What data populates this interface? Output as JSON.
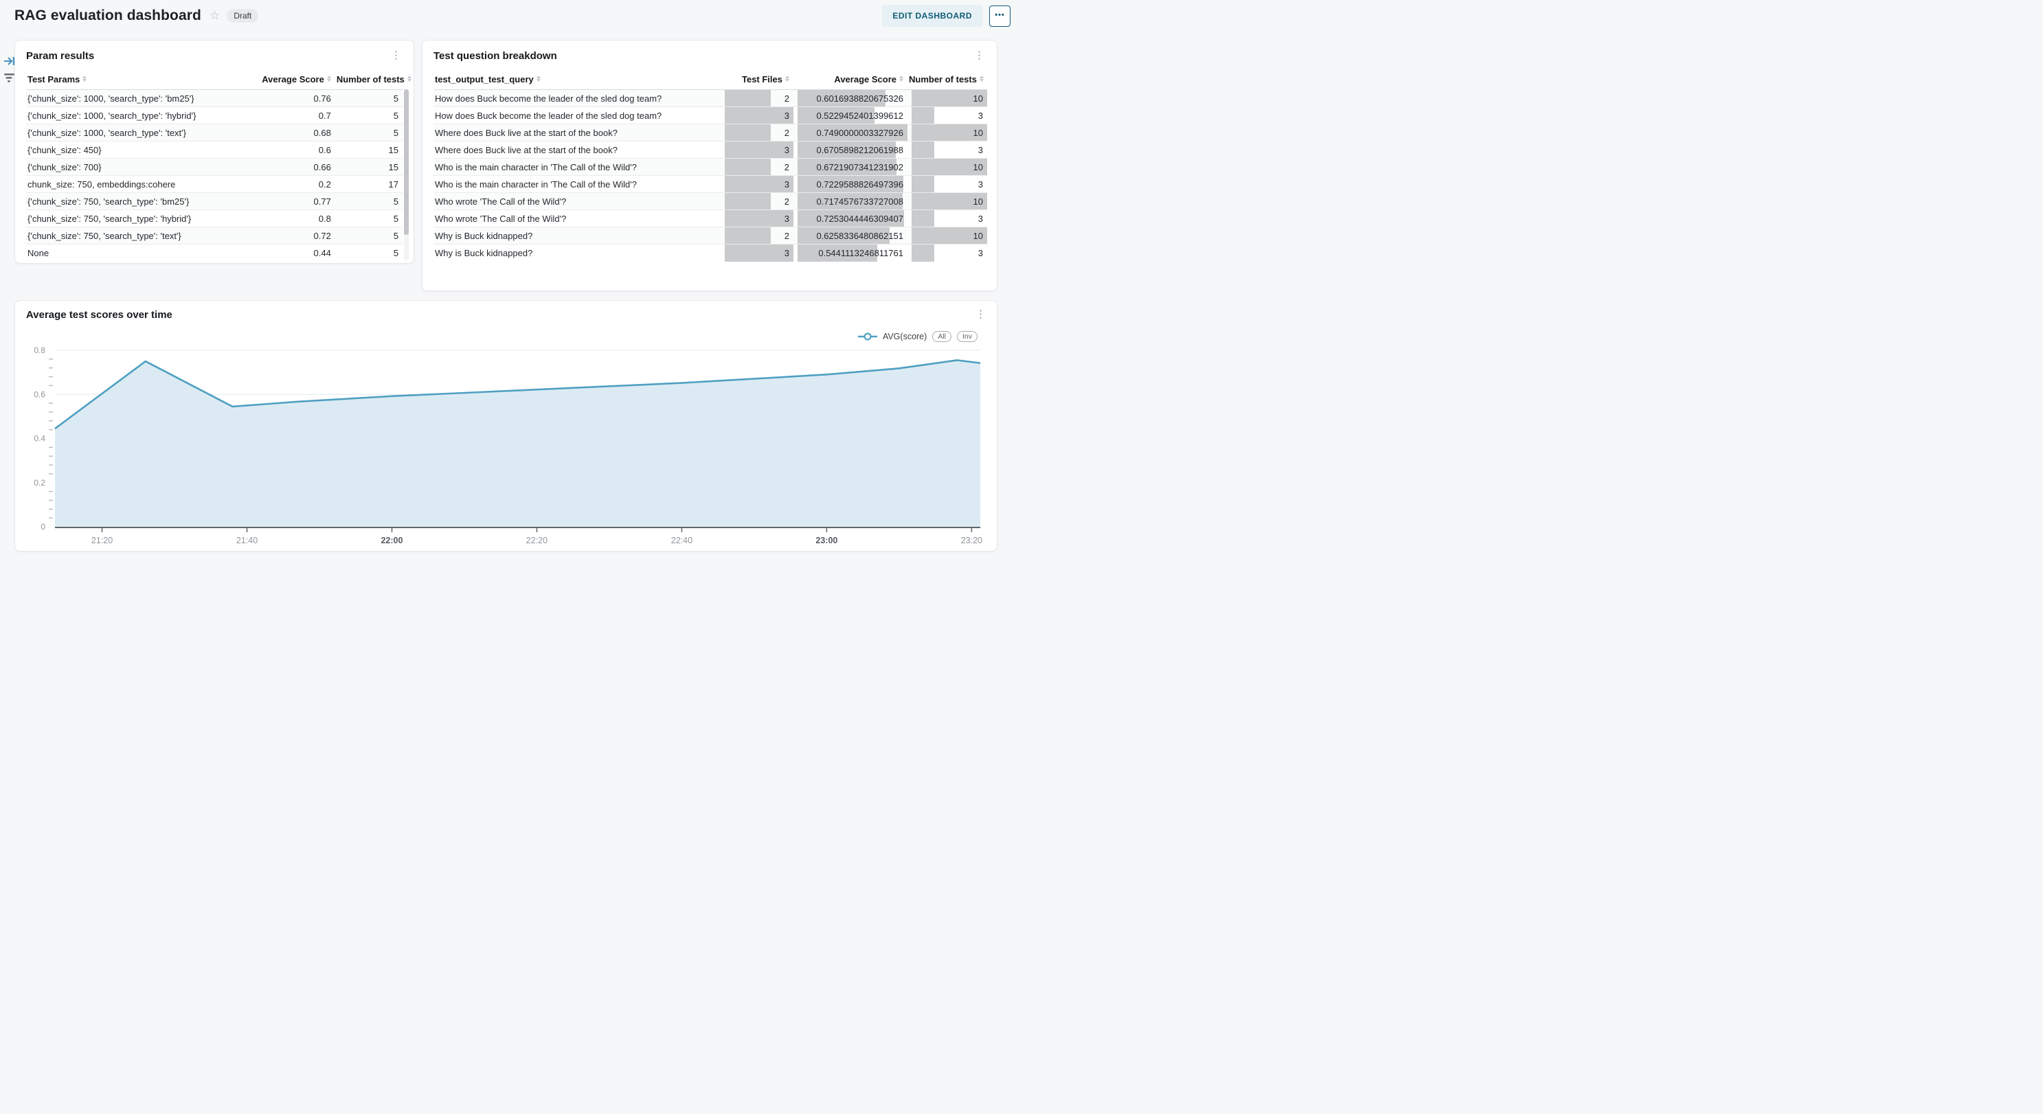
{
  "header": {
    "title": "RAG evaluation dashboard",
    "status_badge": "Draft",
    "edit_button_label": "EDIT DASHBOARD",
    "overflow_button_glyph": "•••",
    "accent_color": "#0e5a75"
  },
  "panels": {
    "param_results": {
      "title": "Param results",
      "columns": [
        "Test Params",
        "Average Score",
        "Number of tests"
      ],
      "rows": [
        [
          "{'chunk_size': 1000, 'search_type': 'bm25'}",
          "0.76",
          "5"
        ],
        [
          "{'chunk_size': 1000, 'search_type': 'hybrid'}",
          "0.7",
          "5"
        ],
        [
          "{'chunk_size': 1000, 'search_type': 'text'}",
          "0.68",
          "5"
        ],
        [
          "{'chunk_size': 450}",
          "0.6",
          "15"
        ],
        [
          "{'chunk_size': 700}",
          "0.66",
          "15"
        ],
        [
          "chunk_size: 750, embeddings:cohere",
          "0.2",
          "17"
        ],
        [
          "{'chunk_size': 750, 'search_type': 'bm25'}",
          "0.77",
          "5"
        ],
        [
          "{'chunk_size': 750, 'search_type': 'hybrid'}",
          "0.8",
          "5"
        ],
        [
          "{'chunk_size': 750, 'search_type': 'text'}",
          "0.72",
          "5"
        ],
        [
          "None",
          "0.44",
          "5"
        ]
      ]
    },
    "question_breakdown": {
      "title": "Test question breakdown",
      "columns": [
        "test_output_test_query",
        "Test Files",
        "Average Score",
        "Number of tests"
      ],
      "bar_color": "#c9cacc",
      "rows": [
        [
          "How does Buck become the leader of the sled dog team?",
          "2",
          "0.6016938820675326",
          "10"
        ],
        [
          "How does Buck become the leader of the sled dog team?",
          "3",
          "0.5229452401399612",
          "3"
        ],
        [
          "Where does Buck live at the start of the book?",
          "2",
          "0.7490000003327926",
          "10"
        ],
        [
          "Where does Buck live at the start of the book?",
          "3",
          "0.6705898212061988",
          "3"
        ],
        [
          "Who is the main character in 'The Call of the Wild'?",
          "2",
          "0.6721907341231902",
          "10"
        ],
        [
          "Who is the main character in 'The Call of the Wild'?",
          "3",
          "0.7229588826497396",
          "3"
        ],
        [
          "Who wrote 'The Call of the Wild'?",
          "2",
          "0.7174576733727008",
          "10"
        ],
        [
          "Who wrote 'The Call of the Wild'?",
          "3",
          "0.7253044446309407",
          "3"
        ],
        [
          "Why is Buck kidnapped?",
          "2",
          "0.6258336480862151",
          "10"
        ],
        [
          "Why is Buck kidnapped?",
          "3",
          "0.5441113246811761",
          "3"
        ]
      ]
    },
    "chart_panel": {
      "title": "Average test scores over time",
      "legend_label": "AVG(score)",
      "legend_buttons": [
        "All",
        "Inv"
      ]
    }
  },
  "chart_data": {
    "type": "area",
    "title": "Average test scores over time",
    "series": [
      {
        "name": "AVG(score)",
        "x_minutes": [
          1273.5,
          1286,
          1298,
          1307,
          1320,
          1340,
          1360,
          1380,
          1390,
          1398,
          1401.2
        ],
        "values": [
          0.445,
          0.75,
          0.545,
          0.567,
          0.592,
          0.622,
          0.652,
          0.69,
          0.718,
          0.755,
          0.742
        ]
      }
    ],
    "x_ticks": [
      {
        "minute": 1280,
        "label": "21:20",
        "bold": false
      },
      {
        "minute": 1300,
        "label": "21:40",
        "bold": false
      },
      {
        "minute": 1320,
        "label": "22:00",
        "bold": true
      },
      {
        "minute": 1340,
        "label": "22:20",
        "bold": false
      },
      {
        "minute": 1360,
        "label": "22:40",
        "bold": false
      },
      {
        "minute": 1380,
        "label": "23:00",
        "bold": true
      },
      {
        "minute": 1400,
        "label": "23:20",
        "bold": false
      }
    ],
    "x_range_minutes": [
      1273.5,
      1401.2
    ],
    "ylim": [
      0,
      0.8
    ],
    "y_ticks": [
      "0",
      "0.2",
      "0.4",
      "0.6",
      "0.8"
    ],
    "y_minor_tick_step": 0.04,
    "grid": "horizontal",
    "legend_position": "top-right",
    "line_color": "#4fa0c2",
    "fill_color": "#dcebf3",
    "grid_color": "#e2e9f0",
    "axis_color": "#63676c"
  }
}
